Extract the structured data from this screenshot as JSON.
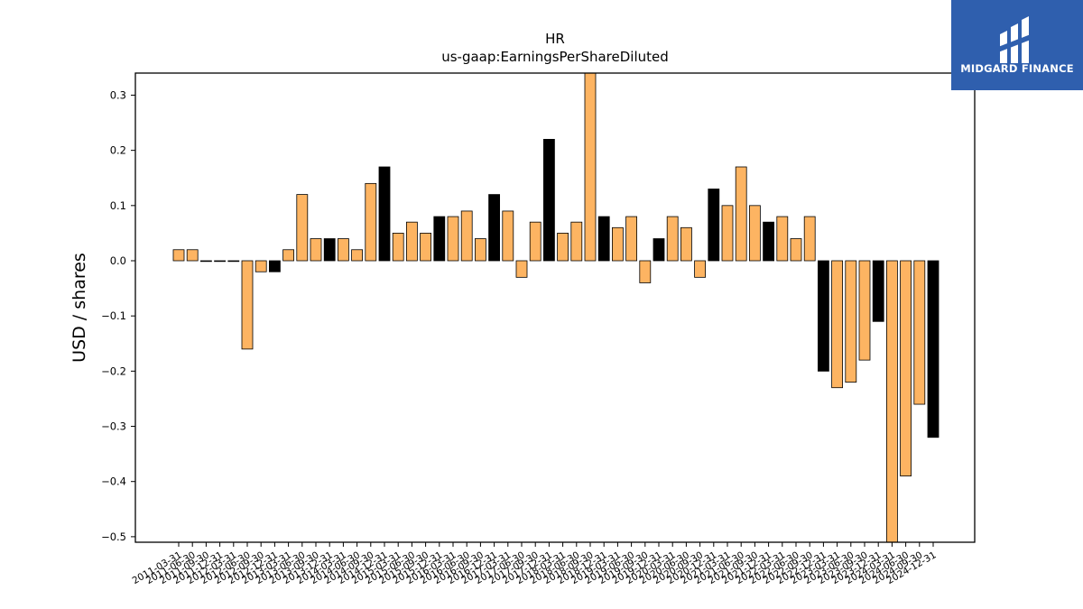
{
  "chart_data": {
    "type": "bar",
    "title": "HR",
    "subtitle": "us-gaap:EarningsPerShareDiluted",
    "xlabel": "",
    "ylabel": "USD / shares",
    "ylim": [
      -0.51,
      0.34
    ],
    "yticks": [
      0.3,
      0.2,
      0.1,
      0.0,
      -0.1,
      -0.2,
      -0.3,
      -0.4,
      -0.5
    ],
    "ytick_labels": [
      "0.3",
      "0.2",
      "0.1",
      "0.0",
      "−0.1",
      "−0.2",
      "−0.3",
      "−0.4",
      "−0.5"
    ],
    "grid": false,
    "colors": {
      "quarter": "#fdb462",
      "annual": "#000000",
      "edge": "#000000"
    },
    "categories": [
      "2011-03-31",
      "2011-06-30",
      "2011-09-30",
      "2011-12-31",
      "2012-03-31",
      "2012-06-30",
      "2012-09-30",
      "2012-12-31",
      "2013-03-31",
      "2013-06-30",
      "2013-09-30",
      "2013-12-31",
      "2014-03-31",
      "2014-06-30",
      "2014-09-30",
      "2014-12-31",
      "2015-03-31",
      "2015-06-30",
      "2015-09-30",
      "2015-12-31",
      "2016-03-31",
      "2016-06-30",
      "2016-09-30",
      "2016-12-31",
      "2017-03-31",
      "2017-06-30",
      "2017-09-30",
      "2017-12-31",
      "2018-03-31",
      "2018-06-30",
      "2018-09-30",
      "2018-12-31",
      "2019-03-31",
      "2019-06-30",
      "2019-09-30",
      "2019-12-31",
      "2020-03-31",
      "2020-06-30",
      "2020-09-30",
      "2020-12-31",
      "2021-03-31",
      "2021-06-30",
      "2021-09-30",
      "2021-12-31",
      "2022-03-31",
      "2022-06-30",
      "2022-09-30",
      "2022-12-31",
      "2023-03-31",
      "2023-06-30",
      "2023-09-30",
      "2023-12-31",
      "2024-03-31",
      "2024-06-30",
      "2024-09-30",
      "2024-12-31"
    ],
    "values": [
      0.02,
      0.02,
      0.0,
      0.0,
      0.0,
      -0.16,
      -0.02,
      -0.02,
      0.02,
      0.12,
      0.04,
      0.04,
      0.04,
      0.02,
      0.14,
      0.17,
      0.05,
      0.07,
      0.05,
      0.08,
      0.08,
      0.09,
      0.04,
      0.12,
      0.09,
      -0.03,
      0.07,
      0.22,
      0.05,
      0.07,
      0.35,
      0.08,
      0.06,
      0.08,
      -0.04,
      0.04,
      0.08,
      0.06,
      -0.03,
      0.13,
      0.1,
      0.17,
      0.1,
      0.07,
      0.08,
      0.04,
      0.08,
      -0.2,
      -0.23,
      -0.22,
      -0.18,
      -0.11,
      -0.52,
      -0.39,
      -0.26,
      -0.32
    ],
    "annual": [
      false,
      false,
      false,
      false,
      false,
      false,
      false,
      true,
      false,
      false,
      false,
      true,
      false,
      false,
      false,
      true,
      false,
      false,
      false,
      true,
      false,
      false,
      false,
      true,
      false,
      false,
      false,
      true,
      false,
      false,
      false,
      true,
      false,
      false,
      false,
      true,
      false,
      false,
      false,
      true,
      false,
      false,
      false,
      true,
      false,
      false,
      false,
      true,
      false,
      false,
      false,
      true,
      false,
      false,
      false,
      true
    ]
  },
  "logo": {
    "text": "MIDGARD FINANCE",
    "icon": "midgard-logo-icon",
    "background": "#2f5fae"
  }
}
